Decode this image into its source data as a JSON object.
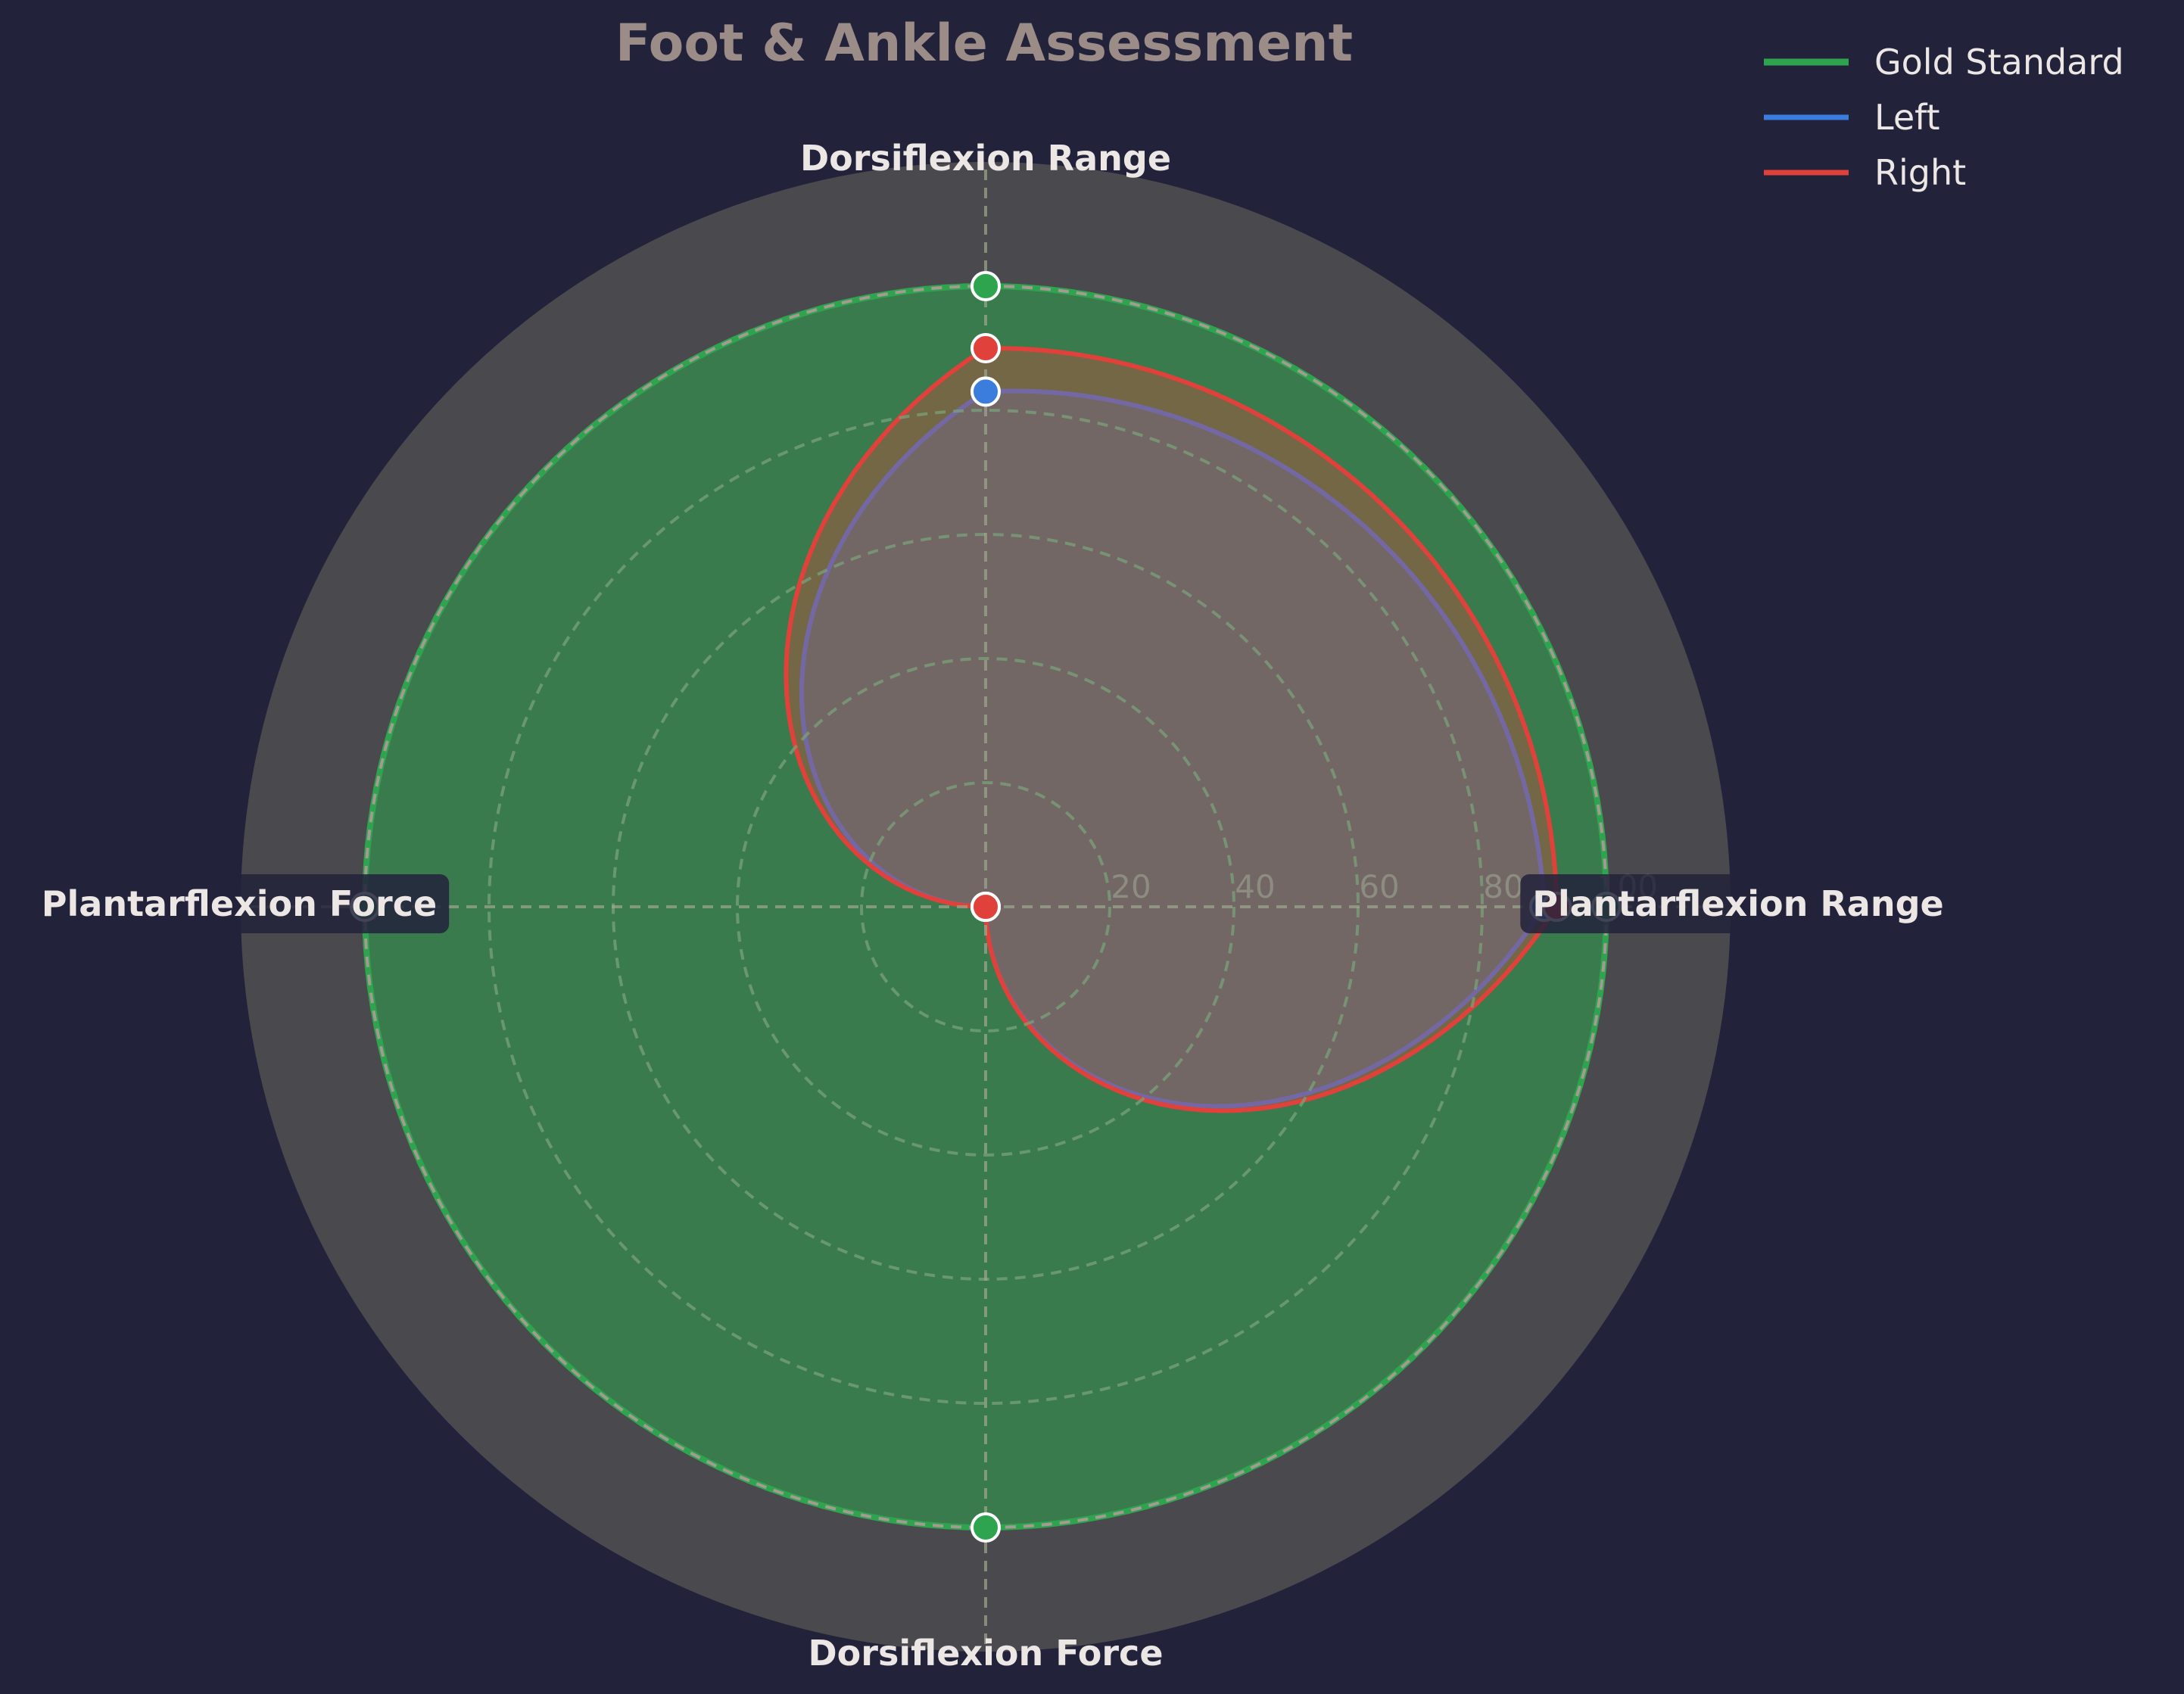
{
  "chart_data": {
    "type": "radar",
    "title": "Foot & Ankle Assessment",
    "axes": [
      "Dorsiflexion Range",
      "Plantarflexion Range",
      "Dorsiflexion Force",
      "Plantarflexion Force"
    ],
    "rlim": [
      0,
      120
    ],
    "rticks": [
      20,
      40,
      60,
      80,
      100
    ],
    "grid": true,
    "legend_position": "top-right",
    "series": [
      {
        "name": "Gold Standard",
        "color": "#2ea44f",
        "values": [
          100,
          100,
          100,
          100
        ],
        "fill": true
      },
      {
        "name": "Left",
        "color": "#3b7ddd",
        "values": [
          83,
          90,
          0,
          0
        ],
        "fill": true
      },
      {
        "name": "Right",
        "color": "#e0413a",
        "values": [
          90,
          92,
          0,
          0
        ],
        "fill": true
      }
    ]
  }
}
